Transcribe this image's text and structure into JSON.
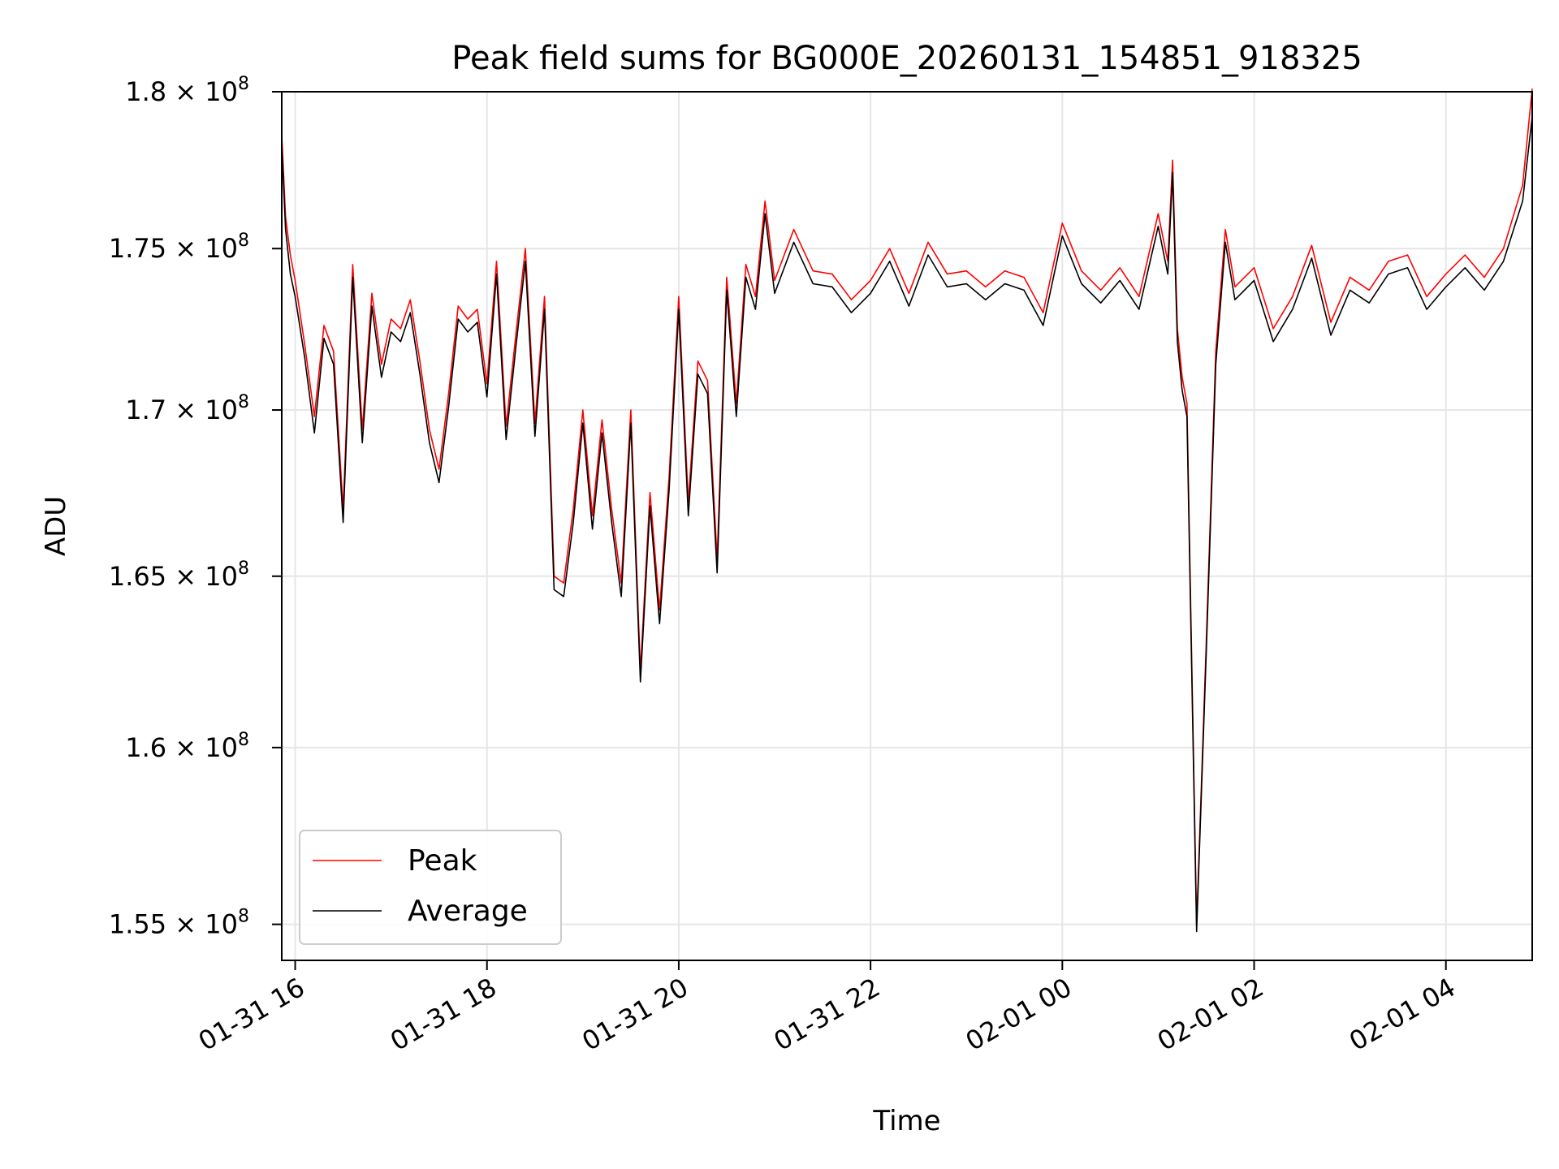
{
  "chart_data": {
    "type": "line",
    "title": "Peak field sums for BG000E_20260131_154851_918325",
    "xlabel": "Time",
    "ylabel": "ADU",
    "yscale": "log",
    "grid": true,
    "legend_position": "lower-left",
    "xlim_hours": [
      -0.14,
      12.9
    ],
    "ylim": [
      154000000,
      180000000
    ],
    "x_ticks": [
      {
        "value": 0,
        "label": "01-31 16"
      },
      {
        "value": 2,
        "label": "01-31 18"
      },
      {
        "value": 4,
        "label": "01-31 20"
      },
      {
        "value": 6,
        "label": "01-31 22"
      },
      {
        "value": 8,
        "label": "02-01 00"
      },
      {
        "value": 10,
        "label": "02-01 02"
      },
      {
        "value": 12,
        "label": "02-01 04"
      }
    ],
    "y_ticks": [
      {
        "value": 155000000,
        "mantissa": "1.55",
        "exponent": "8"
      },
      {
        "value": 160000000,
        "mantissa": "1.6",
        "exponent": "8"
      },
      {
        "value": 165000000,
        "mantissa": "1.65",
        "exponent": "8"
      },
      {
        "value": 170000000,
        "mantissa": "1.7",
        "exponent": "8"
      },
      {
        "value": 175000000,
        "mantissa": "1.75",
        "exponent": "8"
      },
      {
        "value": 180000000,
        "mantissa": "1.8",
        "exponent": "8"
      }
    ],
    "times_label_multiply": "×",
    "time_units": "hours after 01-31 16:00",
    "series": [
      {
        "name": "Peak",
        "color": "#ff0000",
        "x": [
          -0.14,
          -0.1,
          -0.05,
          0.0,
          0.1,
          0.2,
          0.3,
          0.4,
          0.5,
          0.6,
          0.7,
          0.8,
          0.9,
          1.0,
          1.1,
          1.2,
          1.3,
          1.4,
          1.5,
          1.6,
          1.7,
          1.8,
          1.9,
          2.0,
          2.1,
          2.2,
          2.3,
          2.4,
          2.5,
          2.6,
          2.7,
          2.8,
          2.9,
          3.0,
          3.1,
          3.2,
          3.3,
          3.4,
          3.5,
          3.6,
          3.7,
          3.8,
          3.9,
          4.0,
          4.1,
          4.2,
          4.3,
          4.4,
          4.5,
          4.6,
          4.7,
          4.8,
          4.9,
          5.0,
          5.2,
          5.4,
          5.6,
          5.8,
          6.0,
          6.2,
          6.4,
          6.6,
          6.8,
          7.0,
          7.2,
          7.4,
          7.6,
          7.8,
          8.0,
          8.2,
          8.4,
          8.6,
          8.8,
          9.0,
          9.1,
          9.15,
          9.2,
          9.25,
          9.3,
          9.4,
          9.5,
          9.6,
          9.7,
          9.8,
          10.0,
          10.2,
          10.4,
          10.6,
          10.8,
          11.0,
          11.2,
          11.4,
          11.6,
          11.8,
          12.0,
          12.2,
          12.4,
          12.6,
          12.8,
          12.9
        ],
        "y": [
          178600000,
          176000000,
          174800000,
          174000000,
          172000000,
          169800000,
          172600000,
          171800000,
          167000000,
          174500000,
          169400000,
          173600000,
          171400000,
          172800000,
          172500000,
          173400000,
          171500000,
          169400000,
          168200000,
          170500000,
          173200000,
          172800000,
          173100000,
          170800000,
          174600000,
          169500000,
          172300000,
          175000000,
          169600000,
          173500000,
          165000000,
          164800000,
          167000000,
          170000000,
          166800000,
          169700000,
          167000000,
          164800000,
          170000000,
          162200000,
          167500000,
          164000000,
          168000000,
          173500000,
          167200000,
          171500000,
          170900000,
          165500000,
          174100000,
          170200000,
          174500000,
          173500000,
          176500000,
          174000000,
          175600000,
          174300000,
          174200000,
          173400000,
          174000000,
          175000000,
          173600000,
          175200000,
          174200000,
          174300000,
          173800000,
          174300000,
          174100000,
          173000000,
          175800000,
          174300000,
          173700000,
          174400000,
          173500000,
          176100000,
          174600000,
          177800000,
          172500000,
          171000000,
          170200000,
          155000000,
          163000000,
          171800000,
          175600000,
          173800000,
          174400000,
          172500000,
          173500000,
          175100000,
          172700000,
          174100000,
          173700000,
          174600000,
          174800000,
          173500000,
          174200000,
          174800000,
          174100000,
          175000000,
          177000000,
          180100000
        ]
      },
      {
        "name": "Average",
        "color": "#000000",
        "x": [
          -0.14,
          -0.1,
          -0.05,
          0.0,
          0.1,
          0.2,
          0.3,
          0.4,
          0.5,
          0.6,
          0.7,
          0.8,
          0.9,
          1.0,
          1.1,
          1.2,
          1.3,
          1.4,
          1.5,
          1.6,
          1.7,
          1.8,
          1.9,
          2.0,
          2.1,
          2.2,
          2.3,
          2.4,
          2.5,
          2.6,
          2.7,
          2.8,
          2.9,
          3.0,
          3.1,
          3.2,
          3.3,
          3.4,
          3.5,
          3.6,
          3.7,
          3.8,
          3.9,
          4.0,
          4.1,
          4.2,
          4.3,
          4.4,
          4.5,
          4.6,
          4.7,
          4.8,
          4.9,
          5.0,
          5.2,
          5.4,
          5.6,
          5.8,
          6.0,
          6.2,
          6.4,
          6.6,
          6.8,
          7.0,
          7.2,
          7.4,
          7.6,
          7.8,
          8.0,
          8.2,
          8.4,
          8.6,
          8.8,
          9.0,
          9.1,
          9.15,
          9.2,
          9.25,
          9.3,
          9.4,
          9.5,
          9.6,
          9.7,
          9.8,
          10.0,
          10.2,
          10.4,
          10.6,
          10.8,
          11.0,
          11.2,
          11.4,
          11.6,
          11.8,
          12.0,
          12.2,
          12.4,
          12.6,
          12.8,
          12.9
        ],
        "y": [
          178300000,
          175600000,
          174200000,
          173500000,
          171600000,
          169300000,
          172200000,
          171400000,
          166600000,
          174100000,
          169000000,
          173200000,
          171000000,
          172400000,
          172100000,
          173000000,
          171100000,
          169000000,
          167800000,
          170100000,
          172800000,
          172400000,
          172700000,
          170400000,
          174200000,
          169100000,
          171900000,
          174600000,
          169200000,
          173100000,
          164600000,
          164400000,
          166600000,
          169600000,
          166400000,
          169300000,
          166600000,
          164400000,
          169600000,
          161900000,
          167100000,
          163600000,
          167600000,
          173100000,
          166800000,
          171100000,
          170500000,
          165100000,
          173700000,
          169800000,
          174100000,
          173100000,
          176100000,
          173600000,
          175200000,
          173900000,
          173800000,
          173000000,
          173600000,
          174600000,
          173200000,
          174800000,
          173800000,
          173900000,
          173400000,
          173900000,
          173700000,
          172600000,
          175400000,
          173900000,
          173300000,
          174000000,
          173100000,
          175700000,
          174200000,
          177400000,
          172100000,
          170600000,
          169800000,
          154800000,
          162700000,
          171400000,
          175200000,
          173400000,
          174000000,
          172100000,
          173100000,
          174700000,
          172300000,
          173700000,
          173300000,
          174200000,
          174400000,
          173100000,
          173800000,
          174400000,
          173700000,
          174600000,
          176500000,
          179200000
        ]
      }
    ]
  }
}
